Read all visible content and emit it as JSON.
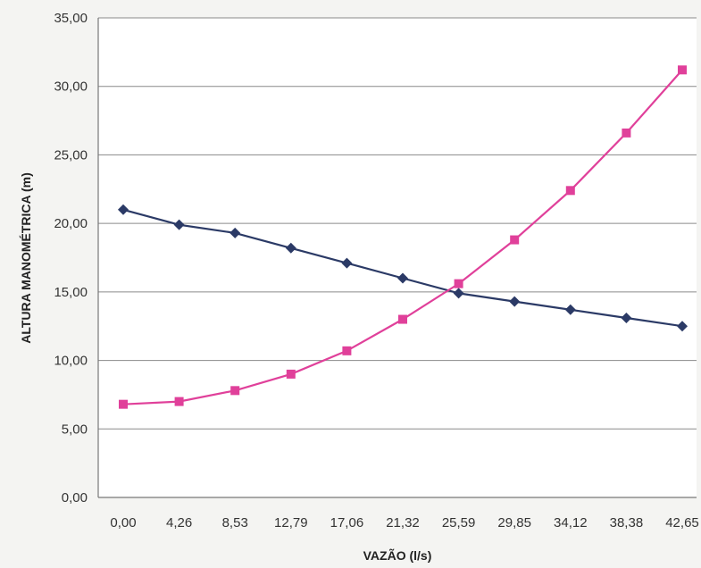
{
  "chart_data": {
    "type": "line",
    "xlabel": "VAZÃO (l/s)",
    "ylabel": "ALTURA MANOMÉTRICA (m)",
    "ylim": [
      0,
      35
    ],
    "yticks": [
      "0,00",
      "5,00",
      "10,00",
      "15,00",
      "20,00",
      "25,00",
      "30,00",
      "35,00"
    ],
    "categories": [
      "0,00",
      "4,26",
      "8,53",
      "12,79",
      "17,06",
      "21,32",
      "25,59",
      "29,85",
      "34,12",
      "38,38",
      "42,65"
    ],
    "grid": true,
    "legend": "none",
    "series": [
      {
        "color": "#2b3a66",
        "marker": "diamond",
        "values": [
          21.0,
          19.9,
          19.3,
          18.2,
          17.1,
          16.0,
          14.9,
          14.3,
          13.7,
          13.1,
          12.5
        ]
      },
      {
        "color": "#e0409a",
        "marker": "square",
        "values": [
          6.8,
          7.0,
          7.8,
          9.0,
          10.7,
          13.0,
          15.6,
          18.8,
          22.4,
          26.6,
          31.2
        ]
      }
    ]
  }
}
